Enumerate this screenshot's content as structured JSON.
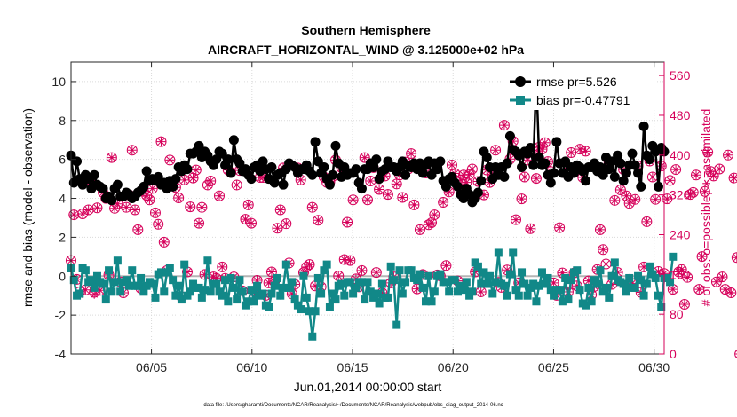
{
  "chart_data": {
    "type": "line",
    "title": "Southern Hemisphere",
    "subtitle": "AIRCRAFT_HORIZONTAL_WIND @ 3.125000e+02 hPa",
    "xlabel": "Jun.01,2014 00:00:00 start",
    "ylabel": "rmse and bias (model - observation)",
    "y2label": "# of obs: o=possible; ∗=assimilated",
    "footnote": "data file: /Users/gharamti/Documents/NCAR/Reanalysis/~/Documents/NCAR/Reanalysis/webpub/obs_diag_output_2014-06.nc",
    "xlim": [
      1,
      30.5
    ],
    "ylim": [
      -4,
      11
    ],
    "y2lim": [
      0,
      587
    ],
    "x_ticks": [
      5,
      10,
      15,
      20,
      25,
      30
    ],
    "x_tick_labels": [
      "06/05",
      "06/10",
      "06/15",
      "06/20",
      "06/25",
      "06/30"
    ],
    "y_ticks": [
      -4,
      -2,
      0,
      2,
      4,
      6,
      8,
      10
    ],
    "y_tick_labels": [
      "-4",
      "-2",
      "0",
      "2",
      "4",
      "6",
      "8",
      "10"
    ],
    "y2_ticks": [
      0,
      80,
      160,
      240,
      320,
      400,
      480,
      560
    ],
    "y2_tick_labels": [
      "0",
      "80",
      "160",
      "240",
      "320",
      "400",
      "480",
      "560"
    ],
    "grid": true,
    "legend_position": "top-right",
    "colors": {
      "rmse": "#000000",
      "bias": "#118888",
      "obs": "#d6005a",
      "zero": "#b5b5b5",
      "grid": "#dadada"
    },
    "series": [
      {
        "name": "rmse pr=5.526",
        "axis": "left",
        "marker": "circle",
        "values": [
          6.2,
          4.8,
          5.9,
          5.0,
          4.7,
          5.2,
          5.0,
          4.5,
          5.2,
          4.7,
          4.6,
          4.5,
          4.0,
          4.1,
          3.9,
          4.5,
          4.7,
          4.1,
          4.1,
          4.3,
          4.2,
          4.0,
          4.1,
          4.3,
          4.4,
          4.6,
          5.4,
          4.9,
          5.0,
          4.9,
          5.1,
          4.7,
          4.8,
          4.5,
          4.9,
          4.6,
          5.0,
          5.6,
          5.4,
          5.7,
          5.5,
          6.3,
          6.3,
          6.4,
          6.7,
          6.1,
          6.4,
          6.2,
          5.9,
          5.7,
          6.0,
          6.4,
          6.3,
          5.7,
          6.0,
          5.3,
          7.0,
          6.0,
          5.8,
          5.4,
          5.5,
          5.2,
          5.0,
          5.6,
          5.7,
          5.4,
          5.9,
          5.5,
          5.0,
          5.6,
          4.8,
          5.2,
          5.3,
          4.7,
          5.5,
          5.8,
          5.7,
          5.6,
          5.3,
          5.5,
          5.5,
          5.7,
          5.4,
          5.2,
          6.9,
          5.9,
          5.3,
          5.6,
          5.0,
          4.7,
          5.2,
          6.7,
          5.8,
          5.1,
          5.6,
          5.2,
          5.3,
          5.3,
          5.5,
          4.8,
          4.5,
          5.5,
          5.5,
          5.8,
          5.6,
          6.0,
          5.0,
          5.4,
          5.5,
          5.9,
          5.6,
          5.6,
          5.4,
          5.6,
          5.9,
          5.2,
          5.7,
          5.6,
          5.8,
          5.5,
          5.8,
          5.3,
          5.7,
          5.9,
          5.2,
          5.8,
          5.5,
          5.9,
          4.9,
          4.6,
          5.0,
          5.1,
          4.8,
          4.6,
          4.2,
          4.0,
          4.5,
          4.2,
          3.8,
          4.0,
          4.3,
          4.9,
          6.4,
          6.1,
          5.6,
          5.0,
          5.6,
          5.2,
          5.6,
          5.1,
          5.8,
          7.2,
          6.5,
          6.4,
          6.2,
          5.6,
          6.4,
          6.3,
          6.6,
          5.7,
          10.2,
          6.1,
          5.7,
          5.8,
          5.2,
          4.8,
          5.3,
          6.9,
          5.8,
          5.3,
          5.9,
          5.1,
          5.6,
          5.3,
          5.7,
          5.6,
          5.4,
          4.9,
          5.6,
          5.6,
          5.8,
          5.4,
          5.6,
          5.2,
          6.1,
          5.5,
          5.9,
          5.1,
          6.2,
          5.8,
          4.9,
          5.3,
          5.7,
          6.3,
          5.7,
          5.3,
          4.6,
          7.7,
          6.2,
          6.0,
          6.7,
          6.4,
          4.6,
          6.6,
          6.4
        ]
      },
      {
        "name": "bias pr=-0.47791",
        "axis": "left",
        "marker": "square",
        "values": [
          0.4,
          -0.2,
          -1.0,
          -0.9,
          0.4,
          0.3,
          -0.3,
          -0.2,
          -0.6,
          0.0,
          -0.3,
          -0.4,
          -1.2,
          0.3,
          -0.8,
          -0.3,
          0.8,
          -0.8,
          -0.3,
          -0.2,
          -0.5,
          0.3,
          -0.5,
          -0.5,
          -0.1,
          -0.8,
          -0.5,
          -0.3,
          -0.4,
          -1.1,
          0.1,
          0.2,
          -0.8,
          0.2,
          0.4,
          -0.2,
          -1.0,
          -0.5,
          -1.2,
          0.6,
          -1.0,
          -0.8,
          -0.4,
          -0.6,
          -0.6,
          -1.1,
          -0.7,
          0.8,
          -0.8,
          -0.4,
          -0.4,
          -0.8,
          -1.0,
          -0.2,
          -1.3,
          -0.1,
          -0.6,
          -1.2,
          -0.2,
          -0.8,
          -1.5,
          -1.3,
          -0.7,
          -1.3,
          -0.5,
          -1.0,
          -0.9,
          -1.5,
          -1.6,
          -0.9,
          -0.5,
          -0.1,
          -1.0,
          -0.6,
          0.6,
          -0.6,
          -0.3,
          -1.2,
          -1.5,
          -1.7,
          0.0,
          -1.1,
          -1.8,
          -3.1,
          -1.8,
          -0.1,
          -0.9,
          0.3,
          0.6,
          -1.6,
          -0.9,
          -1.2,
          -0.5,
          -0.4,
          -1.0,
          -0.3,
          -0.3,
          -0.9,
          -0.6,
          -0.3,
          -0.3,
          -1.2,
          -0.3,
          -0.8,
          -1.1,
          -0.9,
          -1.4,
          -0.4,
          -1.1,
          -1.1,
          0.5,
          -0.2,
          -2.5,
          0.3,
          -0.9,
          -0.3,
          0.3,
          0.3,
          -0.1,
          -0.2,
          0.1,
          -0.6,
          -1.3,
          0.0,
          -1.3,
          -0.8,
          0.0,
          0.1,
          -0.3,
          -0.3,
          -0.8,
          -0.2,
          -0.2,
          -0.8,
          -0.5,
          -0.7,
          -0.3,
          -1.0,
          -0.8,
          0.7,
          0.5,
          -0.4,
          0.2,
          -0.4,
          0.0,
          -0.9,
          -0.3,
          1.2,
          -0.4,
          -0.5,
          -1.0,
          0.1,
          1.2,
          -0.7,
          -1.0,
          0.2,
          -0.4,
          -1.0,
          -0.6,
          -0.4,
          -1.3,
          -0.5,
          0.2,
          -0.4,
          -0.1,
          -0.7,
          -1.0,
          -0.7,
          -0.7,
          -1.3,
          -0.1,
          -1.2,
          -0.2,
          0.2,
          0.3,
          -0.7,
          -1.4,
          -1.5,
          -0.6,
          -1.3,
          -0.2,
          -0.4,
          0.3,
          -0.8,
          -0.6,
          -1.1,
          0.0,
          0.7,
          -0.2,
          -0.3,
          -0.4,
          -0.8,
          -0.1,
          -0.6,
          -0.6,
          0.0,
          -0.2,
          -1.0,
          -0.4,
          0.5,
          0.1,
          -0.1,
          -1.0,
          -1.6,
          -0.1,
          -0.1,
          -0.3,
          1.0
        ]
      },
      {
        "name": "obs possible",
        "axis": "right",
        "marker": "o",
        "values": [
          188,
          280,
          150,
          125,
          282,
          129,
          290,
          342,
          124,
          294,
          128,
          325,
          313,
          159,
          395,
          293,
          302,
          145,
          123,
          295,
          320,
          410,
          290,
          250,
          132,
          327,
          319,
          310,
          333,
          284,
          261,
          427,
          225,
          168,
          390,
          343,
          335,
          314,
          115,
          350,
          165,
          296,
          354,
          370,
          263,
          295,
          160,
          340,
          348,
          155,
          152,
          318,
          175,
          152,
          370,
          365,
          155,
          340,
          369,
          127,
          271,
          300,
          263,
          126,
          148,
          355,
          355,
          118,
          143,
          165,
          146,
          253,
          290,
          374,
          262,
          183,
          121,
          140,
          374,
          350,
          164,
          175,
          180,
          295,
          137,
          269,
          135,
          356,
          345,
          346,
          357,
          390,
          157,
          375,
          190,
          265,
          188,
          310,
          151,
          135,
          168,
          395,
          310,
          348,
          375,
          164,
          331,
          123,
          358,
          321,
          143,
          155,
          342,
          360,
          315,
          386,
          372,
          403,
          300,
          131,
          250,
          160,
          364,
          260,
          264,
          280,
          159,
          157,
          305,
          178,
          326,
          380,
          363,
          147,
          350,
          360,
          345,
          361,
          372,
          165,
          347,
          125,
          320,
          370,
          345,
          360,
          410,
          144,
          134,
          460,
          169,
          392,
          428,
          270,
          143,
          312,
          356,
          390,
          252,
          410,
          353,
          416,
          412,
          425,
          387,
          367,
          143,
          118,
          254,
          163,
          364,
          125,
          405,
          163,
          137,
          412,
          355,
          408,
          147,
          119,
          136,
          170,
          250,
          210,
          181,
          386,
          140,
          309,
          164,
          330,
          371,
          318,
          303,
          142,
          311,
          378,
          124,
          175,
          266,
          388,
          356,
          311,
          166,
          378,
          162,
          312,
          349,
          130,
          371,
          165,
          170,
          100,
          154,
          321,
          325,
          360,
          130,
          196,
          327,
          406,
          367,
          358,
          145,
          372,
          155,
          130,
          400,
          123,
          354,
          194,
          0,
          340,
          170
        ]
      },
      {
        "name": "obs assimilated",
        "axis": "right",
        "marker": "asterisk",
        "values": [
          188,
          280,
          150,
          119,
          282,
          129,
          290,
          342,
          120,
          294,
          128,
          325,
          313,
          159,
          395,
          293,
          302,
          145,
          123,
          295,
          320,
          410,
          290,
          250,
          132,
          327,
          319,
          310,
          333,
          284,
          261,
          427,
          225,
          168,
          390,
          343,
          335,
          314,
          115,
          350,
          165,
          296,
          354,
          370,
          263,
          295,
          160,
          340,
          348,
          155,
          152,
          318,
          175,
          152,
          370,
          365,
          155,
          340,
          369,
          127,
          271,
          300,
          263,
          126,
          148,
          355,
          355,
          118,
          143,
          165,
          146,
          253,
          290,
          374,
          262,
          183,
          121,
          140,
          374,
          350,
          164,
          175,
          180,
          295,
          137,
          269,
          135,
          356,
          345,
          346,
          357,
          390,
          157,
          375,
          190,
          265,
          188,
          310,
          151,
          135,
          168,
          395,
          310,
          348,
          375,
          164,
          331,
          123,
          358,
          321,
          143,
          155,
          342,
          360,
          315,
          386,
          372,
          403,
          300,
          131,
          250,
          160,
          364,
          260,
          264,
          280,
          159,
          157,
          305,
          178,
          326,
          380,
          363,
          147,
          350,
          360,
          345,
          361,
          372,
          165,
          347,
          125,
          320,
          370,
          345,
          360,
          410,
          144,
          134,
          460,
          169,
          392,
          428,
          270,
          143,
          312,
          356,
          390,
          252,
          410,
          353,
          416,
          412,
          425,
          387,
          367,
          143,
          118,
          254,
          163,
          364,
          125,
          405,
          163,
          137,
          412,
          355,
          408,
          147,
          119,
          136,
          170,
          250,
          210,
          181,
          386,
          140,
          309,
          164,
          330,
          371,
          318,
          303,
          142,
          311,
          378,
          124,
          175,
          266,
          388,
          356,
          311,
          166,
          378,
          162,
          312,
          349,
          130,
          371,
          165,
          170,
          100,
          154,
          321,
          325,
          360,
          130,
          196,
          327,
          406,
          367,
          358,
          145,
          372,
          155,
          130,
          400,
          123,
          354,
          194,
          0,
          340,
          170
        ]
      }
    ]
  }
}
